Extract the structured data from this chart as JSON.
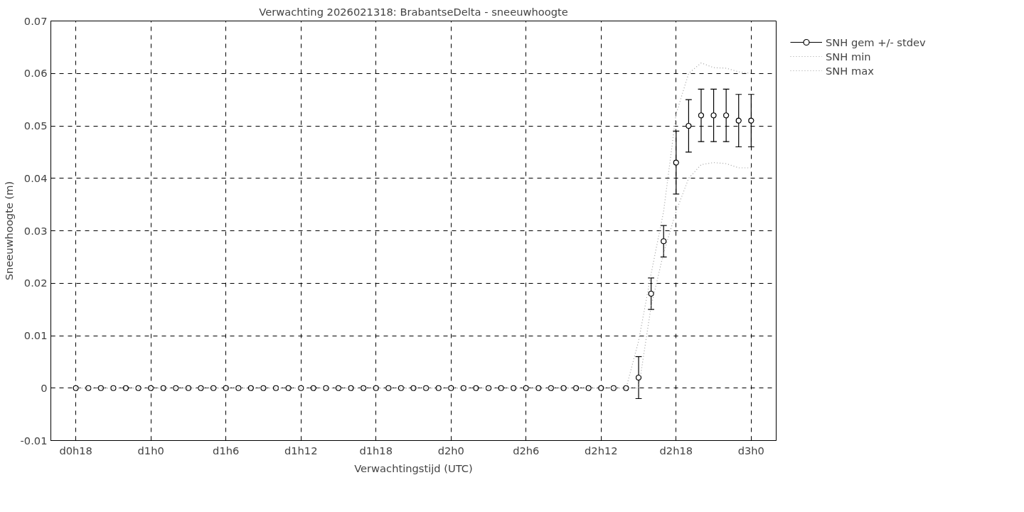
{
  "chart_data": {
    "type": "scatter",
    "title": "Verwachting 2026021318: BrabantseDelta - sneeuwhoogte",
    "xlabel": "Verwachtingstijd (UTC)",
    "ylabel": "Sneeuwhoogte (m)",
    "categories": [
      "d0h18",
      null,
      null,
      null,
      null,
      null,
      "d1h0",
      null,
      null,
      null,
      null,
      null,
      "d1h6",
      null,
      null,
      null,
      null,
      null,
      "d1h12",
      null,
      null,
      null,
      null,
      null,
      "d1h18",
      null,
      null,
      null,
      null,
      null,
      "d2h0",
      null,
      null,
      null,
      null,
      null,
      "d2h6",
      null,
      null,
      null,
      null,
      null,
      "d2h12",
      null,
      null,
      null,
      null,
      null,
      "d2h18",
      null,
      null,
      null,
      null,
      null,
      "d3h0"
    ],
    "ylim": [
      -0.01,
      0.07
    ],
    "yticks": [
      {
        "value": -0.01,
        "label": "-0.01"
      },
      {
        "value": 0,
        "label": "0"
      },
      {
        "value": 0.01,
        "label": "0.01"
      },
      {
        "value": 0.02,
        "label": "0.02"
      },
      {
        "value": 0.03,
        "label": "0.03"
      },
      {
        "value": 0.04,
        "label": "0.04"
      },
      {
        "value": 0.05,
        "label": "0.05"
      },
      {
        "value": 0.06,
        "label": "0.06"
      },
      {
        "value": 0.07,
        "label": "0.07"
      }
    ],
    "grid": true,
    "legend": "top right",
    "series": [
      {
        "name": "SNH gem +/- stdev",
        "marker": "circle",
        "color": "#000000",
        "values": [
          0,
          0,
          0,
          0,
          0,
          0,
          0,
          0,
          0,
          0,
          0,
          0,
          0,
          0,
          0,
          0,
          0,
          0,
          0,
          0,
          0,
          0,
          0,
          0,
          0,
          0,
          0,
          0,
          0,
          0,
          0,
          0,
          0,
          0,
          0,
          0,
          0,
          0,
          0,
          0,
          0,
          0,
          0,
          0,
          0,
          0.002,
          0.018,
          0.028,
          0.043,
          0.05,
          0.052,
          0.052,
          0.052,
          0.051,
          0.051
        ],
        "errors": [
          null,
          null,
          null,
          null,
          null,
          null,
          null,
          null,
          null,
          null,
          null,
          null,
          null,
          null,
          null,
          null,
          null,
          null,
          null,
          null,
          null,
          null,
          null,
          null,
          null,
          null,
          null,
          null,
          null,
          null,
          null,
          null,
          null,
          null,
          null,
          null,
          null,
          null,
          null,
          null,
          null,
          null,
          null,
          null,
          null,
          0.004,
          0.003,
          0.003,
          0.006,
          0.005,
          0.005,
          0.005,
          0.005,
          0.005,
          0.005
        ]
      },
      {
        "name": "SNH min",
        "type": "line",
        "line_style": "dotted",
        "color": "#a0a0a0",
        "values": [
          0,
          0,
          0,
          0,
          0,
          0,
          0,
          0,
          0,
          0,
          0,
          0,
          0,
          0,
          0,
          0,
          0,
          0,
          0,
          0,
          0,
          0,
          0,
          0,
          0,
          0,
          0,
          0,
          0,
          0,
          0,
          0,
          0,
          0,
          0,
          0,
          0,
          0,
          0,
          0,
          0,
          0,
          0,
          0,
          0,
          0,
          0.0156,
          0.0258,
          0.0337,
          0.04,
          0.0426,
          0.043,
          0.0428,
          0.042,
          0.042
        ]
      },
      {
        "name": "SNH max",
        "type": "line",
        "line_style": "dotted",
        "color": "#a0a0a0",
        "values": [
          0,
          0,
          0,
          0,
          0,
          0,
          0,
          0,
          0,
          0,
          0,
          0,
          0,
          0,
          0,
          0,
          0,
          0,
          0,
          0,
          0,
          0,
          0,
          0,
          0,
          0,
          0,
          0,
          0,
          0,
          0,
          0,
          0,
          0,
          0,
          0,
          0,
          0,
          0,
          0,
          0,
          0,
          0,
          0,
          0,
          0.009,
          0.0218,
          0.0337,
          0.0523,
          0.06,
          0.062,
          0.0611,
          0.061,
          0.0603,
          0.06
        ]
      }
    ]
  }
}
